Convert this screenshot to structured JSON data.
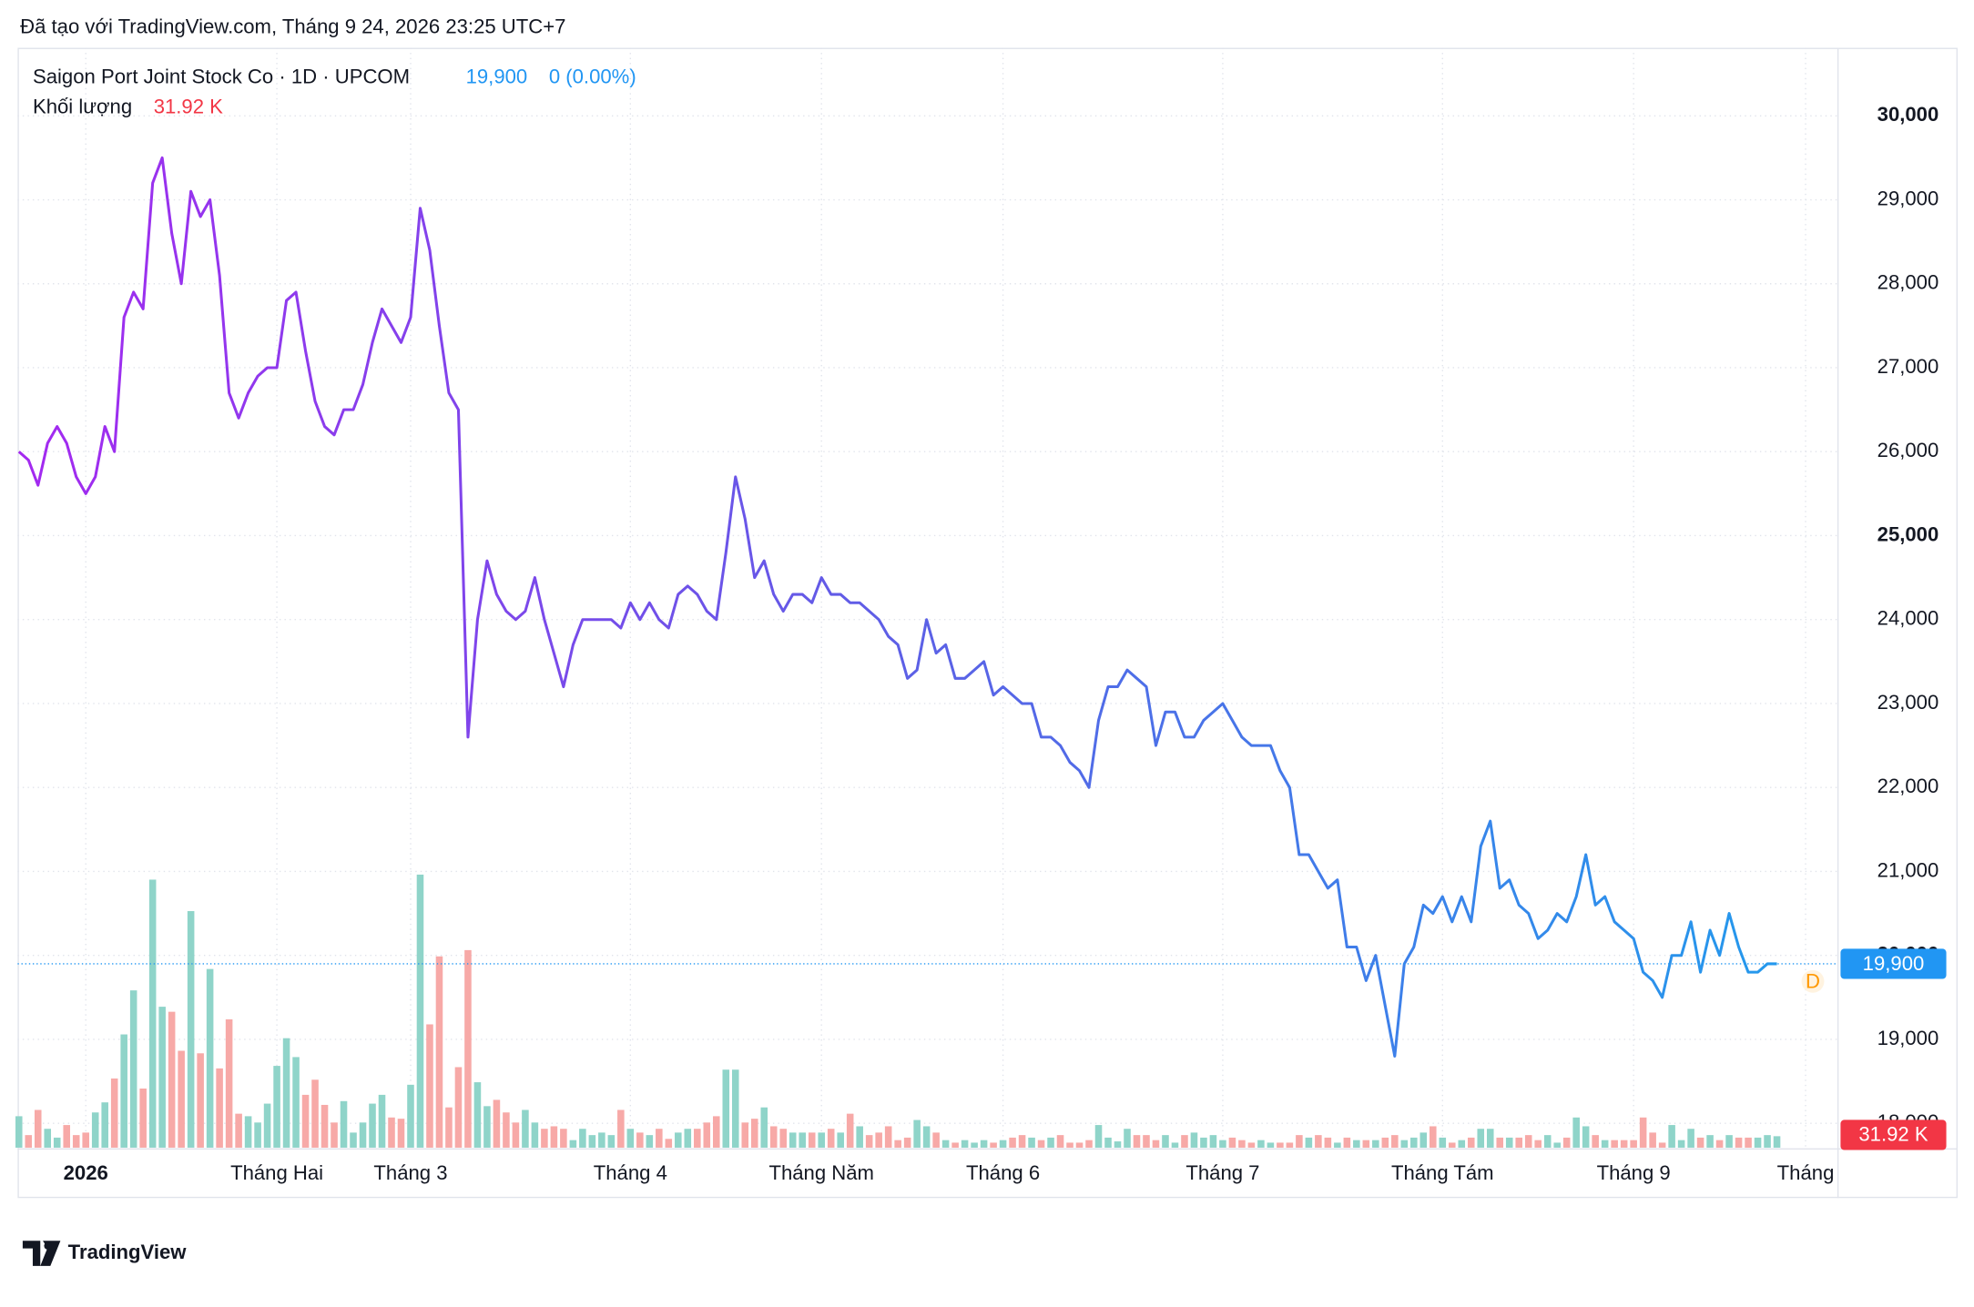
{
  "header": {
    "caption": "Đã tạo với TradingView.com, Tháng 9 24, 2026 23:25 UTC+7"
  },
  "chart_data": {
    "type": "line",
    "xlim": [
      0,
      190
    ],
    "xticks": [
      {
        "value": 7,
        "label": "2026"
      },
      {
        "value": 27,
        "label": "Tháng Hai"
      },
      {
        "value": 41,
        "label": "Tháng 3"
      },
      {
        "value": 64,
        "label": "Tháng 4"
      },
      {
        "value": 84,
        "label": "Tháng Năm"
      },
      {
        "value": 103,
        "label": "Tháng 6"
      },
      {
        "value": 126,
        "label": "Tháng 7"
      },
      {
        "value": 149,
        "label": "Tháng Tám"
      },
      {
        "value": 169,
        "label": "Tháng 9"
      },
      {
        "value": 187,
        "label": "Tháng"
      }
    ],
    "ylim": [
      17710,
      30810
    ],
    "yticks": [
      {
        "value": 18000,
        "label": "18,000"
      },
      {
        "value": 19000,
        "label": "19,000"
      },
      {
        "value": 20000,
        "label": "20,000"
      },
      {
        "value": 21000,
        "label": "21,000"
      },
      {
        "value": 22000,
        "label": "22,000"
      },
      {
        "value": 23000,
        "label": "23,000"
      },
      {
        "value": 24000,
        "label": "24,000"
      },
      {
        "value": 25000,
        "label": "25,000"
      },
      {
        "value": 26000,
        "label": "26,000"
      },
      {
        "value": 27000,
        "label": "27,000"
      },
      {
        "value": 28000,
        "label": "28,000"
      },
      {
        "value": 29000,
        "label": "29,000"
      },
      {
        "value": 30000,
        "label": "30,000"
      }
    ],
    "y2lim": [
      0,
      3059
    ],
    "grid": true,
    "series": [
      {
        "name": "Saigon Port Joint Stock Co · 1D · UPCOM",
        "colors": [
          "#a429f0",
          "#5d5fe6",
          "#2499ec"
        ],
        "values": [
          26000,
          25900,
          25600,
          26100,
          26300,
          26100,
          25700,
          25500,
          25700,
          26300,
          26000,
          27600,
          27900,
          27700,
          29200,
          29500,
          28600,
          28000,
          29100,
          28800,
          29000,
          28100,
          26700,
          26400,
          26700,
          26900,
          27000,
          27000,
          27800,
          27900,
          27200,
          26600,
          26300,
          26200,
          26500,
          26500,
          26800,
          27300,
          27700,
          27500,
          27300,
          27600,
          28900,
          28400,
          27500,
          26700,
          26500,
          22600,
          24000,
          24700,
          24300,
          24100,
          24000,
          24100,
          24500,
          24000,
          23600,
          23200,
          23700,
          24000,
          24000,
          24000,
          24000,
          23900,
          24200,
          24000,
          24200,
          24000,
          23900,
          24300,
          24400,
          24300,
          24100,
          24000,
          24800,
          25700,
          25200,
          24500,
          24700,
          24300,
          24100,
          24300,
          24300,
          24200,
          24500,
          24300,
          24300,
          24200,
          24200,
          24100,
          24000,
          23800,
          23700,
          23300,
          23400,
          24000,
          23600,
          23700,
          23300,
          23300,
          23400,
          23500,
          23100,
          23200,
          23100,
          23000,
          23000,
          22600,
          22600,
          22500,
          22300,
          22200,
          22000,
          22800,
          23200,
          23200,
          23400,
          23300,
          23200,
          22500,
          22900,
          22900,
          22600,
          22600,
          22800,
          22900,
          23000,
          22800,
          22600,
          22500,
          22500,
          22500,
          22200,
          22000,
          21200,
          21200,
          21000,
          20800,
          20900,
          20100,
          20100,
          19700,
          20000,
          19400,
          18800,
          19900,
          20100,
          20600,
          20500,
          20700,
          20400,
          20700,
          20400,
          21300,
          21600,
          20800,
          20900,
          20600,
          20500,
          20200,
          20300,
          20500,
          20400,
          20700,
          21200,
          20600,
          20700,
          20400,
          20300,
          20200,
          19800,
          19700,
          19500,
          20000,
          20000,
          20400,
          19800,
          20300,
          20000,
          20500,
          20100,
          19800,
          19800,
          19900,
          19900
        ],
        "last_value": 19900,
        "last_label": "19,900",
        "change_label": "0 (0.00%)",
        "label_color": "#2196f3",
        "marker": "D"
      },
      {
        "name": "Khối lượng",
        "type": "bar",
        "axis": "y2",
        "up_color": "#8fd4c9",
        "down_color": "#f7a9a7",
        "label_color": "#f23645",
        "values": [
          87.5,
          35,
          105,
          52.5,
          28,
          63,
          35,
          42,
          98,
          126,
          192.5,
          315,
          437.5,
          164.5,
          745.5,
          392,
          378,
          269.5,
          658,
          262.5,
          497,
          220.5,
          357,
          94.5,
          87.5,
          70,
          122.5,
          227.5,
          304.5,
          252,
          147,
          189,
          119,
          70,
          129.5,
          42,
          70,
          122.5,
          147,
          84,
          80.5,
          175,
          759.5,
          343,
          532,
          112,
          224,
          549.5,
          182,
          115.5,
          133,
          98,
          70,
          105,
          70,
          52.5,
          59.5,
          52.5,
          21,
          52.5,
          35,
          42,
          35,
          105,
          52.5,
          42,
          35,
          52.5,
          24.5,
          42,
          52.5,
          52.5,
          70,
          87.5,
          217,
          217,
          70,
          80.5,
          112,
          59.5,
          52.5,
          42,
          42,
          42,
          42,
          52.5,
          42,
          94.5,
          59.5,
          35,
          42,
          59.5,
          21,
          28,
          77,
          59.5,
          42,
          21,
          14,
          21,
          14,
          21,
          14,
          21,
          28,
          35,
          28,
          21,
          28,
          35,
          14,
          14,
          21,
          63,
          28,
          17.5,
          52.5,
          35,
          35,
          21,
          35,
          14,
          35,
          42,
          28,
          35,
          21,
          28,
          21,
          14,
          21,
          14,
          14,
          14,
          35,
          28,
          35,
          28,
          14,
          28,
          21,
          21,
          21,
          28,
          35,
          21,
          28,
          42,
          59.5,
          28,
          14,
          21,
          28,
          52.5,
          52.5,
          28,
          28,
          28,
          35,
          21,
          35,
          14,
          28,
          84,
          59.5,
          35,
          21,
          21,
          21,
          21,
          84,
          42,
          14,
          63,
          21,
          52.5,
          28,
          35,
          21,
          35,
          28,
          28,
          28,
          35,
          31.92
        ],
        "last_value": 31.92,
        "last_label": "31.92 K"
      }
    ]
  },
  "footer": {
    "logo": "TradingView"
  }
}
